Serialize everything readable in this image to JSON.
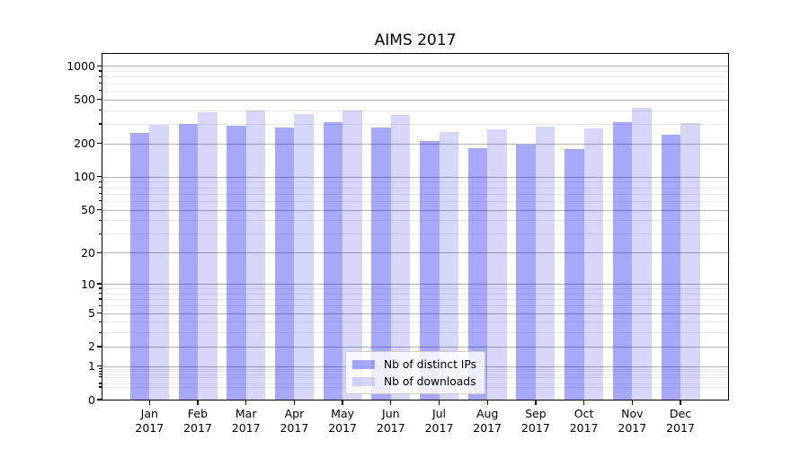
{
  "title": "AIMS 2017",
  "chart_data": {
    "type": "bar",
    "title": "AIMS 2017",
    "categories": [
      "Jan",
      "Feb",
      "Mar",
      "Apr",
      "May",
      "Jun",
      "Jul",
      "Aug",
      "Sep",
      "Oct",
      "Nov",
      "Dec"
    ],
    "year_label": "2017",
    "series": [
      {
        "name": "Nb of distinct IPs",
        "color": "rgba(0,0,238,0.34)",
        "values": [
          250,
          298,
          289,
          280,
          310,
          280,
          212,
          180,
          195,
          178,
          311,
          240
        ]
      },
      {
        "name": "Nb of downloads",
        "color": "rgba(0,0,238,0.155)",
        "values": [
          293,
          382,
          400,
          371,
          394,
          360,
          252,
          268,
          283,
          272,
          419,
          305
        ]
      }
    ],
    "xlabel": "",
    "ylabel": "",
    "y_axis": {
      "scale": "log1p",
      "ylim": [
        0,
        1300
      ],
      "major_ticks": [
        0,
        1,
        2,
        5,
        10,
        20,
        50,
        100,
        200,
        500,
        1000
      ],
      "minor_ticks": [
        0.3,
        0.4,
        0.6,
        0.7,
        0.8,
        0.9,
        3,
        4,
        6,
        7,
        8,
        9,
        30,
        40,
        60,
        70,
        80,
        90,
        300,
        400,
        600,
        700,
        800,
        900
      ],
      "grid": "on"
    },
    "legend": {
      "position": "lower center"
    },
    "colors": {
      "major_grid": "#b0b0b0",
      "minor_grid": "#e8e8e8",
      "spine": "#000000",
      "bar_dark_on_white": "#a8a8f9",
      "bar_light_on_white": "#d8d8fc"
    }
  }
}
